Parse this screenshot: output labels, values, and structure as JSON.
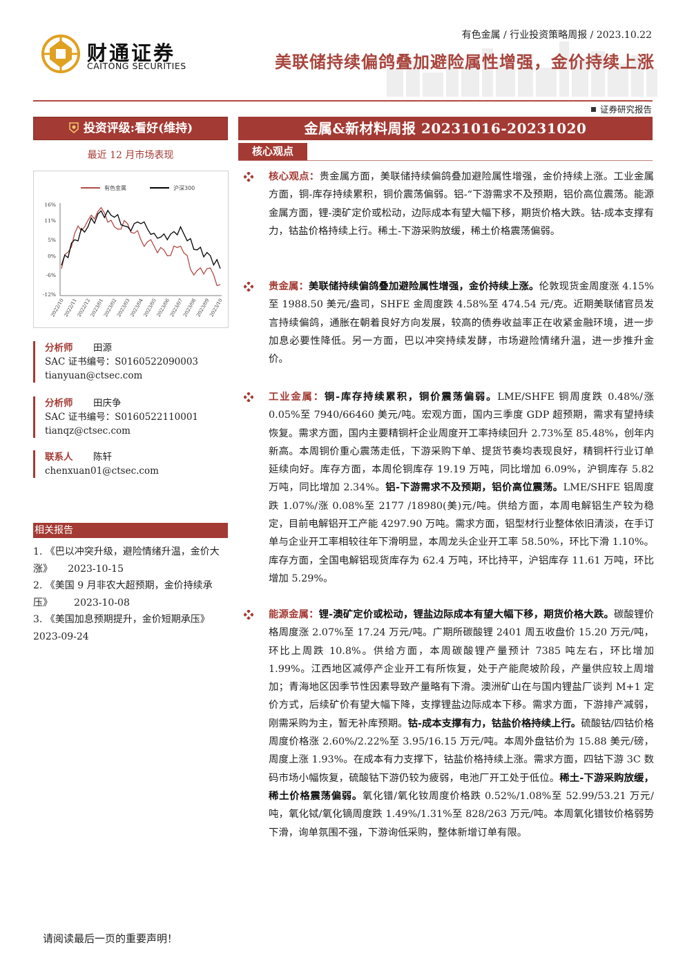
{
  "header": {
    "logo_cn": "财通证券",
    "logo_en": "CAITONG SECURITIES",
    "meta": "有色金属 / 行业投资策略周报 / 2023.10.22",
    "headline": "美联储持续偏鸽叠加避险属性增强，金价持续上涨",
    "doc_type": "证券研究报告"
  },
  "sidebar": {
    "rating": "投资评级:看好(维持)",
    "market_label": "最近 12 月市场表现",
    "analysts": [
      {
        "role": "分析师",
        "name": "田源",
        "cert": "SAC 证书编号：S0160522090003",
        "email": "tianyuan@ctsec.com"
      },
      {
        "role": "分析师",
        "name": "田庆争",
        "cert": "SAC 证书编号：S0160522110001",
        "email": "tianqz@ctsec.com"
      }
    ],
    "contact": {
      "role": "联系人",
      "name": "陈轩",
      "email": "chenxuan01@ctsec.com"
    },
    "related_head": "相关报告",
    "related": [
      {
        "text": "1. 《巴以冲突升级，避险情绪升温，金价大涨》",
        "date": "2023-10-15"
      },
      {
        "text": "2. 《美国 9 月非农大超预期，金价持续承压》",
        "date": "2023-10-08"
      },
      {
        "text": "3. 《美国加息预期提升，金价短期承压》",
        "date": "2023-09-24"
      }
    ]
  },
  "main": {
    "report_title": "金属&新材料周报 20231016-20231020",
    "core_tab": "核心观点",
    "sections": {
      "core": {
        "tag": "核心观点：",
        "text": "贵金属方面，美联储持续偏鸽叠加避险属性增强，金价持续上涨。工业金属方面，铜-库存持续累积，铜价震荡偏弱。铝-“下游需求不及预期，铝价高位震荡。能源金属方面，锂-澳矿定价或松动，边际成本有望大幅下移，期货价格大跌。钴-成本支撑有力，钴盐价格持续上行。稀土-下游采购放缓，稀土价格震荡偏弱。"
      },
      "precious": {
        "tag": "贵金属：",
        "bold": "美联储持续偏鸽叠加避险属性增强，金价持续上涨。",
        "text": "伦敦现货金周度涨 4.15%至 1988.50 美元/盎司，SHFE 金周度跌 4.58%至 474.54 元/克。近期美联储官员发言持续偏鸽，通胀在朝着良好方向发展，较高的债券收益率正在收紧金融环境，进一步加息必要性降低。另一方面，巴以冲突持续发酵，市场避险情绪升温，进一步推升金价。"
      },
      "industrial": {
        "tag": "工业金属：",
        "bold1": "铜-库存持续累积，铜价震荡偏弱。",
        "text1": "LME/SHFE 铜周度跌 0.48%/涨 0.05%至 7940/66460 美元/吨。宏观方面，国内三季度 GDP 超预期，需求有望持续恢复。需求方面，国内主要精铜杆企业周度开工率持续回升 2.73%至 85.48%，创年内新高。本周铜价重心震荡走低，下游采购下单、提货节奏均表现良好，精铜杆行业订单延续向好。库存方面，本周伦铜库存 19.19 万吨，同比增加 6.09%，沪铜库存 5.82 万吨，同比增加 2.34%。",
        "bold2": "铝-下游需求不及预期，铝价高位震荡。",
        "text2": "LME/SHFE 铝周度跌 1.07%/涨 0.08%至 2177 /18980(美)元/吨。供给方面，本周电解铝生产较为稳定，目前电解铝开工产能 4297.90 万吨。需求方面，铝型材行业整体依旧清淡，在手订单与企业开工率相较往年下滑明显，本周龙头企业开工率 58.50%，环比下滑 1.10%。库存方面，全国电解铝现货库存为 62.4 万吨，环比持平，沪铝库存 11.61 万吨，环比增加 5.29%。"
      },
      "energy": {
        "tag": "能源金属：",
        "bold1": "锂-澳矿定价或松动，锂盐边际成本有望大幅下移，期货价格大跌。",
        "text1": "碳酸锂价格周度涨 2.07%至 17.24 万元/吨。广期所碳酸锂 2401 周五收盘价 15.20 万元/吨，环比上周跌 10.8%。供给方面，本周碳酸锂产量预计 7385 吨左右，环比增加 1.99%。江西地区减停产企业开工有所恢复，处于产能爬坡阶段，产量供应较上周增加；青海地区因季节性因素导致产量略有下滑。澳洲矿山在与国内锂盐厂谈判 M+1 定价方式，后续矿价有望大幅下降，支撑锂盐边际成本下移。需求方面，下游排产减弱，刚需采购为主，暂无补库预期。",
        "bold2": "钴-成本支撑有力，钴盐价格持续上行。",
        "text2": "硫酸钴/四钴价格周度价格涨 2.60%/2.22%至 3.95/16.15 万元/吨。本周外盘钴价为 15.88 美元/磅，周度上涨 1.93%。在成本有力支撑下，钴盐价格持续上涨。需求方面，四钴下游 3C 数码市场小幅恢复，硫酸钴下游仍较为疲弱，电池厂开工处于低位。",
        "bold3": "稀土-下游采购放缓，稀土价格震荡偏弱。",
        "text3": "氧化镨/氧化钕周度价格跌 0.52%/1.08%至 52.99/53.21 万元/吨，氧化铽/氧化镝周度跌 1.49%/1.31%至 828/263 万元/吨。本周氧化镨钕价格弱势下滑，询单氛围不强，下游询低采购，整体新增订单有限。"
      }
    }
  },
  "footer": {
    "disclaimer": "请阅读最后一页的重要声明！"
  },
  "chart_data": {
    "type": "line",
    "x": [
      "2022/10",
      "2022/11",
      "2022/12",
      "2023/01",
      "2023/02",
      "2023/03",
      "2023/04",
      "2023/05",
      "2023/06",
      "2023/07",
      "2023/08",
      "2023/09",
      "2023/10"
    ],
    "series": [
      {
        "name": "有色金属",
        "color": "#b04a43",
        "values": [
          -4,
          7,
          11,
          15,
          9,
          10,
          5,
          3,
          0,
          3,
          -6,
          -4,
          -9
        ]
      },
      {
        "name": "沪深300",
        "color": "#000000",
        "values": [
          -3,
          5,
          9,
          14,
          12,
          9,
          10,
          7,
          5,
          9,
          2,
          1,
          -4
        ]
      }
    ],
    "yticks": [
      "16%",
      "11%",
      "5%",
      "0%",
      "-6%",
      "-12%"
    ],
    "ylim": [
      -12,
      16
    ],
    "legend": "top"
  }
}
